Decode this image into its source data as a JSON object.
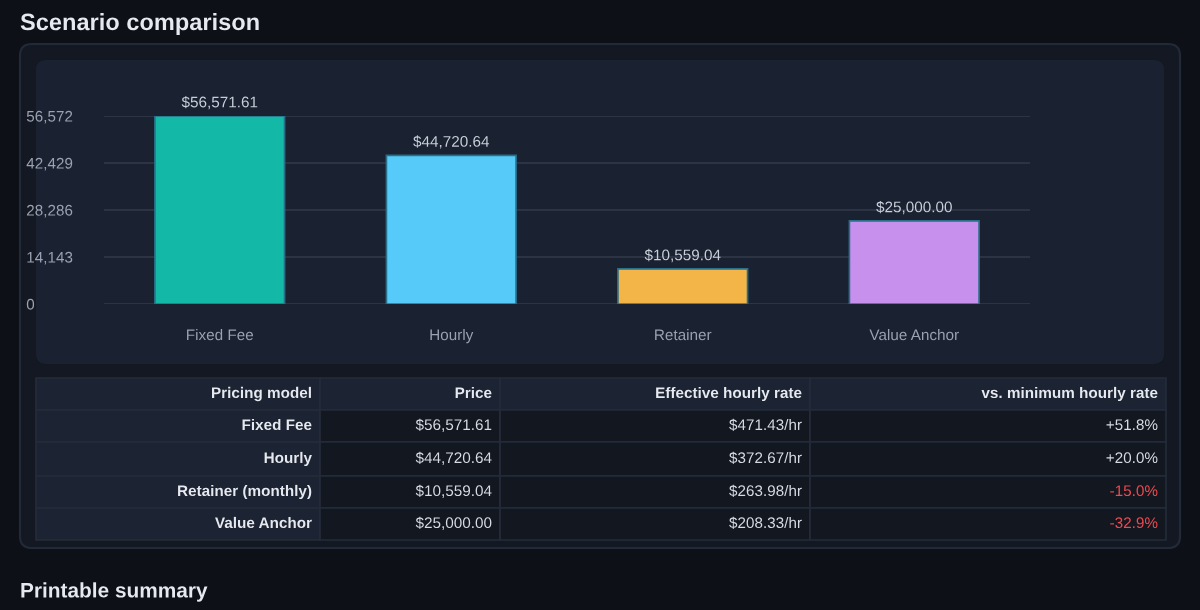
{
  "chart_data": [
    {
      "type": "bar",
      "title": "Scenario comparison",
      "categories": [
        "Fixed Fee",
        "Hourly",
        "Retainer",
        "Value Anchor"
      ],
      "values": [
        56571.61,
        44720.64,
        10559.04,
        25000.0
      ],
      "colors": [
        "#14b8a6",
        "#56cbf9",
        "#f4b548",
        "#c690ec"
      ],
      "value_labels": [
        "$56,571.61",
        "$44,720.64",
        "$10,559.04",
        "$25,000.00"
      ],
      "ylim": [
        0,
        56572
      ],
      "yticks": [
        {
          "value": 0,
          "label": "0"
        },
        {
          "value": 14143,
          "label": "14,143"
        },
        {
          "value": 28286,
          "label": "28,286"
        },
        {
          "value": 42429,
          "label": "42,429"
        },
        {
          "value": 56572,
          "label": "56,572"
        }
      ],
      "grid": "y"
    },
    {
      "type": "other",
      "categories": [
        "Pricing model",
        "Price",
        "Effective hourly rate",
        "vs. minimum hourly rate"
      ],
      "y_categories": [
        "Fixed Fee",
        "Hourly",
        "Retainer (monthly)",
        "Value Anchor"
      ],
      "cell_labels": [
        [
          "$56,571.61",
          "$471.43/hr",
          "+51.8%"
        ],
        [
          "$44,720.64",
          "$372.67/hr",
          "+20.0%"
        ],
        [
          "$10,559.04",
          "$263.98/hr",
          "-15.0%"
        ],
        [
          "$25,000.00",
          "$208.33/hr",
          "-32.9%"
        ]
      ],
      "colors": [
        "#d7dce4",
        "#d7dce4",
        "#f0484f",
        "#f0484f"
      ],
      "annotations": [
        "Printable summary"
      ]
    }
  ]
}
